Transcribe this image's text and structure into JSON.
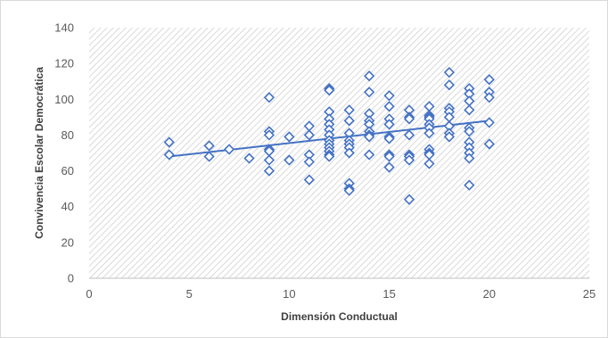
{
  "chart_data": {
    "type": "scatter",
    "title": "",
    "xlabel": "Dimensión Conductual",
    "ylabel": "Convivencia Escolar Democrática",
    "xlim": [
      0,
      25
    ],
    "ylim": [
      0,
      140
    ],
    "x_ticks": [
      "0",
      "5",
      "10",
      "15",
      "20",
      "25"
    ],
    "y_ticks": [
      "0",
      "20",
      "40",
      "60",
      "80",
      "100",
      "120",
      "140"
    ],
    "grid": false,
    "background": "hatched",
    "marker": "diamond-outline",
    "colors": {
      "marker": "#4472c4",
      "trendline": "#4472c4",
      "axis": "#bfbfbf",
      "hatch": "#d0d0d0"
    },
    "points": [
      {
        "x": 4,
        "y": 76
      },
      {
        "x": 4,
        "y": 69
      },
      {
        "x": 6,
        "y": 74
      },
      {
        "x": 6,
        "y": 68
      },
      {
        "x": 7,
        "y": 72
      },
      {
        "x": 8,
        "y": 67
      },
      {
        "x": 9,
        "y": 101
      },
      {
        "x": 9,
        "y": 82
      },
      {
        "x": 9,
        "y": 80
      },
      {
        "x": 9,
        "y": 72
      },
      {
        "x": 9,
        "y": 71
      },
      {
        "x": 9,
        "y": 66
      },
      {
        "x": 9,
        "y": 60
      },
      {
        "x": 10,
        "y": 79
      },
      {
        "x": 10,
        "y": 66
      },
      {
        "x": 11,
        "y": 85
      },
      {
        "x": 11,
        "y": 80
      },
      {
        "x": 11,
        "y": 69
      },
      {
        "x": 11,
        "y": 65
      },
      {
        "x": 11,
        "y": 55
      },
      {
        "x": 12,
        "y": 106
      },
      {
        "x": 12,
        "y": 105
      },
      {
        "x": 12,
        "y": 93
      },
      {
        "x": 12,
        "y": 89
      },
      {
        "x": 12,
        "y": 86
      },
      {
        "x": 12,
        "y": 83
      },
      {
        "x": 12,
        "y": 80
      },
      {
        "x": 12,
        "y": 77
      },
      {
        "x": 12,
        "y": 75
      },
      {
        "x": 12,
        "y": 73
      },
      {
        "x": 12,
        "y": 71
      },
      {
        "x": 12,
        "y": 69
      },
      {
        "x": 12,
        "y": 68
      },
      {
        "x": 13,
        "y": 94
      },
      {
        "x": 13,
        "y": 88
      },
      {
        "x": 13,
        "y": 81
      },
      {
        "x": 13,
        "y": 77
      },
      {
        "x": 13,
        "y": 75
      },
      {
        "x": 13,
        "y": 73
      },
      {
        "x": 13,
        "y": 70
      },
      {
        "x": 13,
        "y": 53
      },
      {
        "x": 13,
        "y": 50
      },
      {
        "x": 13,
        "y": 49
      },
      {
        "x": 14,
        "y": 113
      },
      {
        "x": 14,
        "y": 104
      },
      {
        "x": 14,
        "y": 92
      },
      {
        "x": 14,
        "y": 88
      },
      {
        "x": 14,
        "y": 86
      },
      {
        "x": 14,
        "y": 82
      },
      {
        "x": 14,
        "y": 80
      },
      {
        "x": 14,
        "y": 79
      },
      {
        "x": 14,
        "y": 69
      },
      {
        "x": 15,
        "y": 102
      },
      {
        "x": 15,
        "y": 96
      },
      {
        "x": 15,
        "y": 89
      },
      {
        "x": 15,
        "y": 86
      },
      {
        "x": 15,
        "y": 79
      },
      {
        "x": 15,
        "y": 78
      },
      {
        "x": 15,
        "y": 69
      },
      {
        "x": 15,
        "y": 68
      },
      {
        "x": 15,
        "y": 62
      },
      {
        "x": 16,
        "y": 94
      },
      {
        "x": 16,
        "y": 90
      },
      {
        "x": 16,
        "y": 89
      },
      {
        "x": 16,
        "y": 80
      },
      {
        "x": 16,
        "y": 69
      },
      {
        "x": 16,
        "y": 68
      },
      {
        "x": 16,
        "y": 66
      },
      {
        "x": 16,
        "y": 44
      },
      {
        "x": 17,
        "y": 96
      },
      {
        "x": 17,
        "y": 91
      },
      {
        "x": 17,
        "y": 90
      },
      {
        "x": 17,
        "y": 89
      },
      {
        "x": 17,
        "y": 86
      },
      {
        "x": 17,
        "y": 84
      },
      {
        "x": 17,
        "y": 81
      },
      {
        "x": 17,
        "y": 72
      },
      {
        "x": 17,
        "y": 70
      },
      {
        "x": 17,
        "y": 69
      },
      {
        "x": 17,
        "y": 64
      },
      {
        "x": 18,
        "y": 115
      },
      {
        "x": 18,
        "y": 108
      },
      {
        "x": 18,
        "y": 95
      },
      {
        "x": 18,
        "y": 93
      },
      {
        "x": 18,
        "y": 90
      },
      {
        "x": 18,
        "y": 85
      },
      {
        "x": 18,
        "y": 81
      },
      {
        "x": 18,
        "y": 79
      },
      {
        "x": 19,
        "y": 106
      },
      {
        "x": 19,
        "y": 103
      },
      {
        "x": 19,
        "y": 99
      },
      {
        "x": 19,
        "y": 94
      },
      {
        "x": 19,
        "y": 84
      },
      {
        "x": 19,
        "y": 82
      },
      {
        "x": 19,
        "y": 76
      },
      {
        "x": 19,
        "y": 73
      },
      {
        "x": 19,
        "y": 70
      },
      {
        "x": 19,
        "y": 67
      },
      {
        "x": 19,
        "y": 52
      },
      {
        "x": 20,
        "y": 111
      },
      {
        "x": 20,
        "y": 104
      },
      {
        "x": 20,
        "y": 101
      },
      {
        "x": 20,
        "y": 87
      },
      {
        "x": 20,
        "y": 75
      }
    ],
    "trendline": {
      "type": "linear",
      "x": [
        4,
        20
      ],
      "y": [
        68,
        88
      ]
    }
  }
}
